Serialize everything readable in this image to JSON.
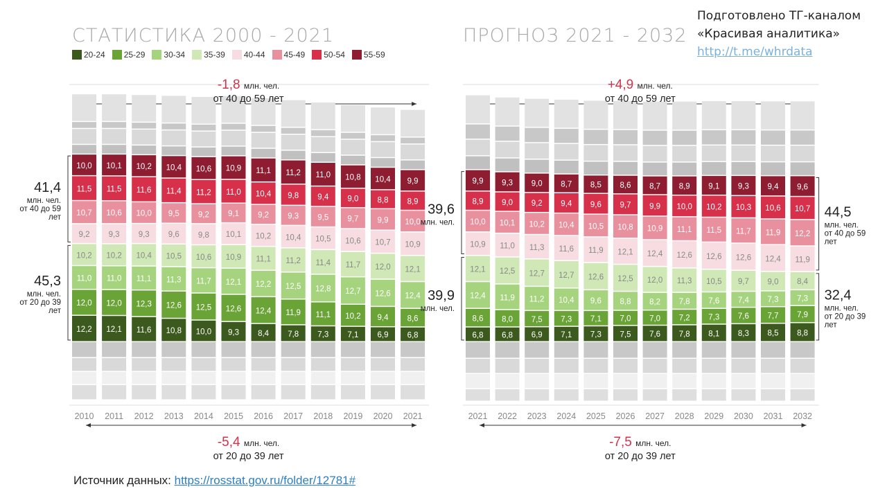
{
  "header": {
    "left_title": "СТАТИСТИКА 2000 - 2021",
    "right_title": "ПРОГНОЗ 2021 - 2032",
    "credit_line1": "Подготовлено  ТГ-каналом",
    "credit_line2": "«Красивая аналитика»",
    "credit_link": "http://t.me/whrdata"
  },
  "source": {
    "label": "Источник данных:",
    "link": "https://rosstat.gov.ru/folder/12781#"
  },
  "legend": [
    {
      "label": "20-24",
      "color": "#3d5a1e"
    },
    {
      "label": "25-29",
      "color": "#6aa336"
    },
    {
      "label": "30-34",
      "color": "#a6d47e"
    },
    {
      "label": "35-39",
      "color": "#cfe8b6"
    },
    {
      "label": "40-44",
      "color": "#f7dde2"
    },
    {
      "label": "45-49",
      "color": "#e8909e"
    },
    {
      "label": "50-54",
      "color": "#d6304b"
    },
    {
      "label": "55-59",
      "color": "#8e1d32"
    }
  ],
  "chart_data": [
    {
      "type": "bar",
      "stacked": true,
      "title": "СТАТИСТИКА 2000 - 2021",
      "unit": "млн. чел.",
      "categories": [
        "2010",
        "2011",
        "2012",
        "2013",
        "2014",
        "2015",
        "2016",
        "2017",
        "2018",
        "2019",
        "2020",
        "2021"
      ],
      "series": [
        {
          "name": "20-24",
          "values": [
            12.2,
            12.1,
            11.6,
            10.8,
            10.0,
            9.3,
            8.4,
            7.8,
            7.3,
            7.1,
            6.9,
            6.8
          ]
        },
        {
          "name": "25-29",
          "values": [
            12.0,
            12.0,
            12.3,
            12.6,
            12.5,
            12.6,
            12.4,
            11.9,
            11.1,
            10.2,
            9.4,
            8.6
          ]
        },
        {
          "name": "30-34",
          "values": [
            11.0,
            11.0,
            11.1,
            11.3,
            11.7,
            12.1,
            12.2,
            12.5,
            12.8,
            12.7,
            12.6,
            12.4
          ]
        },
        {
          "name": "35-39",
          "values": [
            10.2,
            10.2,
            10.4,
            10.5,
            10.6,
            10.9,
            11.1,
            11.2,
            11.4,
            11.7,
            12.0,
            12.1
          ]
        },
        {
          "name": "40-44",
          "values": [
            9.2,
            9.3,
            9.3,
            9.6,
            9.8,
            10.1,
            10.2,
            10.4,
            10.5,
            10.6,
            10.7,
            10.9
          ]
        },
        {
          "name": "45-49",
          "values": [
            10.7,
            10.6,
            10.0,
            9.5,
            9.2,
            9.1,
            9.2,
            9.3,
            9.5,
            9.7,
            9.9,
            10.0
          ]
        },
        {
          "name": "50-54",
          "values": [
            11.5,
            11.5,
            11.6,
            11.4,
            11.2,
            11.0,
            10.4,
            9.8,
            9.4,
            9.0,
            8.8,
            8.9
          ]
        },
        {
          "name": "55-59",
          "values": [
            10.0,
            10.1,
            10.2,
            10.4,
            10.6,
            10.9,
            11.1,
            11.2,
            11.0,
            10.8,
            10.4,
            9.9
          ]
        }
      ],
      "bracket_top": {
        "value": "41,4",
        "unit": "млн. чел.",
        "range": "от 40 до 59",
        "suffix": "лет"
      },
      "bracket_bottom": {
        "value": "45,3",
        "unit": "млн. чел.",
        "range": "от 20 до 39",
        "suffix": "лет"
      },
      "change_top": {
        "value": "-1,8",
        "unit": "млн. чел.",
        "range": "от 40 до 59 лет"
      },
      "change_bottom": {
        "value": "-5,4",
        "unit": "млн. чел.",
        "range": "от 20 до 39 лет"
      }
    },
    {
      "type": "bar",
      "stacked": true,
      "title": "ПРОГНОЗ 2021 - 2032",
      "unit": "млн. чел.",
      "categories": [
        "2021",
        "2022",
        "2023",
        "2024",
        "2025",
        "2026",
        "2027",
        "2028",
        "2029",
        "2030",
        "2031",
        "2032"
      ],
      "series": [
        {
          "name": "20-24",
          "values": [
            6.8,
            6.8,
            6.9,
            7.1,
            7.3,
            7.5,
            7.6,
            7.8,
            8.1,
            8.3,
            8.5,
            8.8
          ]
        },
        {
          "name": "25-29",
          "values": [
            8.6,
            8.0,
            7.5,
            7.3,
            7.1,
            7.0,
            7.0,
            7.2,
            7.3,
            7.6,
            7.7,
            7.9
          ]
        },
        {
          "name": "30-34",
          "values": [
            12.4,
            11.9,
            11.2,
            10.4,
            9.6,
            8.8,
            8.2,
            7.8,
            7.6,
            7.4,
            7.3,
            7.3
          ]
        },
        {
          "name": "35-39",
          "values": [
            12.1,
            12.5,
            12.7,
            12.7,
            12.6,
            12.5,
            12.0,
            11.3,
            10.5,
            9.7,
            9.0,
            8.4
          ]
        },
        {
          "name": "40-44",
          "values": [
            10.9,
            11.0,
            11.3,
            11.6,
            11.9,
            12.1,
            12.4,
            12.6,
            12.6,
            12.6,
            12.4,
            11.9
          ]
        },
        {
          "name": "45-49",
          "values": [
            10.0,
            10.1,
            10.2,
            10.4,
            10.5,
            10.8,
            10.9,
            11.1,
            11.5,
            11.7,
            11.9,
            12.2
          ]
        },
        {
          "name": "50-54",
          "values": [
            8.9,
            9.0,
            9.2,
            9.4,
            9.6,
            9.7,
            9.9,
            10.0,
            10.2,
            10.3,
            10.6,
            10.7
          ]
        },
        {
          "name": "55-59",
          "values": [
            9.9,
            9.3,
            9.0,
            8.7,
            8.5,
            8.6,
            8.7,
            8.9,
            9.1,
            9.3,
            9.4,
            9.6
          ]
        }
      ],
      "bracket_left_top": {
        "value": "39,6",
        "unit": "млн. чел."
      },
      "bracket_left_bottom": {
        "value": "39,9",
        "unit": "млн. чел."
      },
      "bracket_top": {
        "value": "44,5",
        "unit": "млн. чел.",
        "range": "от 40 до 59",
        "suffix": "лет"
      },
      "bracket_bottom": {
        "value": "32,4",
        "unit": "млн. чел.",
        "range": "от 20 до 39",
        "suffix": "лет"
      },
      "change_top": {
        "value": "+4,9",
        "unit": "млн. чел.",
        "range": "от 40 до 59 лет"
      },
      "change_bottom": {
        "value": "-7,5",
        "unit": "млн. чел.",
        "range": "от 20 до 39 лет"
      }
    }
  ]
}
